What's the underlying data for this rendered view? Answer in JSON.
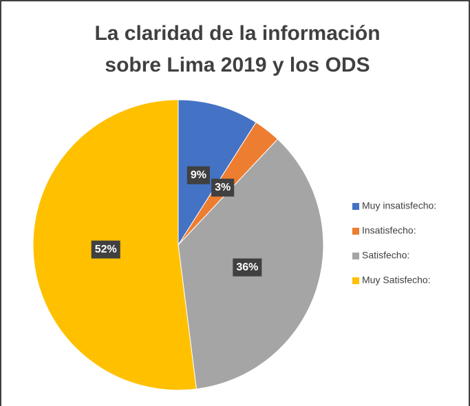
{
  "chart_data": {
    "type": "pie",
    "title": [
      "La claridad de la información",
      "sobre Lima 2019 y los ODS"
    ],
    "categories": [
      "Muy insatisfecho:",
      "Insatisfecho:",
      "Satisfecho:",
      "Muy Satisfecho:"
    ],
    "values": [
      9,
      3,
      36,
      52
    ],
    "value_labels": [
      "9%",
      "3%",
      "36%",
      "52%"
    ],
    "colors": [
      "#4472c4",
      "#ed7d31",
      "#a5a5a5",
      "#ffc000"
    ],
    "legend": "right"
  }
}
